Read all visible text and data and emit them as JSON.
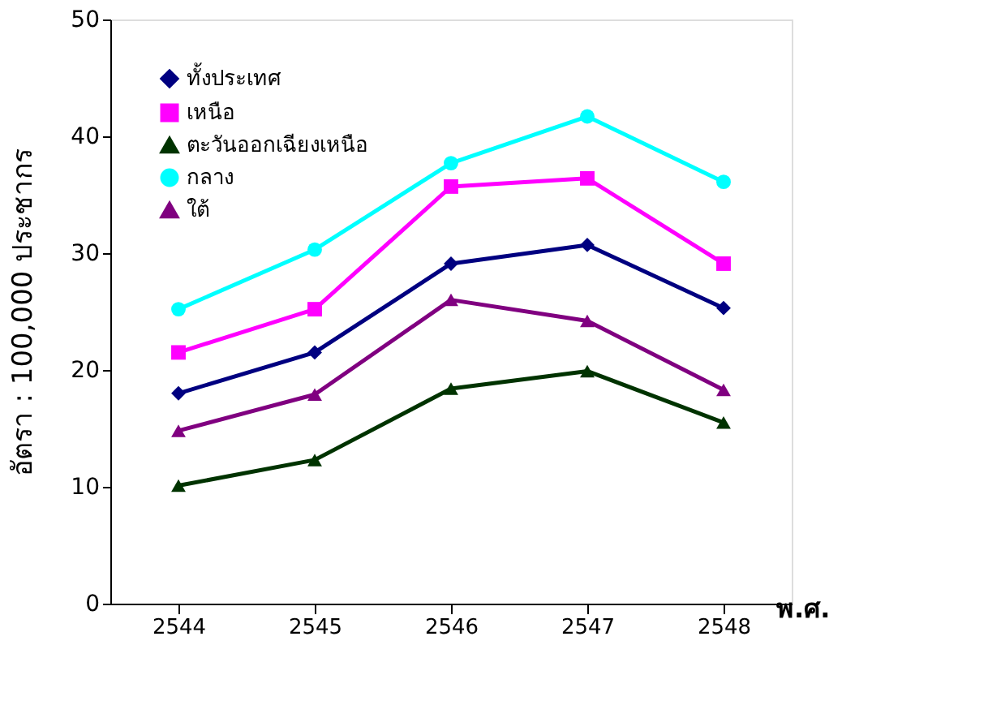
{
  "chart_data": {
    "type": "line",
    "xlabel": "พ.ศ.",
    "ylabel": "อัตรา : 100,000 ประชากร",
    "categories": [
      "2544",
      "2545",
      "2546",
      "2547",
      "2548"
    ],
    "ylim": [
      0,
      50
    ],
    "yticks": [
      0,
      10,
      20,
      30,
      40,
      50
    ],
    "grid": false,
    "legend": "top left",
    "series": [
      {
        "name": "ทั้งประเทศ",
        "color": "#000080",
        "marker": "diamond",
        "values": [
          18.0,
          21.5,
          29.1,
          30.7,
          25.3
        ]
      },
      {
        "name": "เหนือ",
        "color": "#ff00ff",
        "marker": "square",
        "values": [
          21.5,
          25.2,
          35.7,
          36.4,
          29.1
        ]
      },
      {
        "name": "ตะวันออกเฉียงเหนือ",
        "color": "#003300",
        "marker": "triangle",
        "values": [
          10.1,
          12.3,
          18.4,
          19.9,
          15.5
        ]
      },
      {
        "name": "กลาง",
        "color": "#00ffff",
        "marker": "circle",
        "values": [
          25.2,
          30.3,
          37.7,
          41.7,
          36.1
        ]
      },
      {
        "name": "ใต้",
        "color": "#800080",
        "marker": "triangle",
        "values": [
          14.8,
          17.9,
          26.0,
          24.2,
          18.3
        ]
      }
    ]
  }
}
